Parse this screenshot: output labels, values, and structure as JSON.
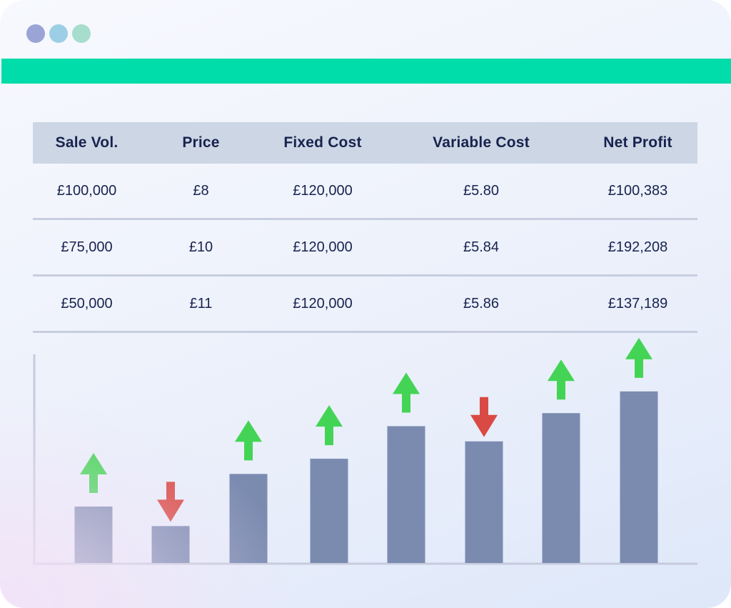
{
  "window": {
    "controls": [
      {
        "name": "window-dot-1",
        "color": "#9aa5d6"
      },
      {
        "name": "window-dot-2",
        "color": "#9ccfe6"
      },
      {
        "name": "window-dot-3",
        "color": "#a6ddcc"
      }
    ],
    "accent_color": "#00dcaa"
  },
  "table": {
    "headers": [
      "Sale Vol.",
      "Price",
      "Fixed Cost",
      "Variable Cost",
      "Net Profit"
    ],
    "rows": [
      [
        "£100,000",
        "£8",
        "£120,000",
        "£5.80",
        "£100,383"
      ],
      [
        "£75,000",
        "£10",
        "£120,000",
        "£5.84",
        "£192,208"
      ],
      [
        "£50,000",
        "£11",
        "£120,000",
        "£5.86",
        "£137,189"
      ]
    ]
  },
  "chart_data": {
    "type": "bar",
    "title": "",
    "xlabel": "",
    "ylabel": "",
    "ylim": [
      0,
      100
    ],
    "values": [
      26,
      17,
      41,
      48,
      63,
      56,
      69,
      79
    ],
    "trend": [
      "up",
      "down",
      "up",
      "up",
      "up",
      "down",
      "up",
      "up"
    ],
    "bar_color": "#7b8bb0",
    "up_color": "#44d455",
    "down_color": "#d94a44",
    "grid": false
  }
}
